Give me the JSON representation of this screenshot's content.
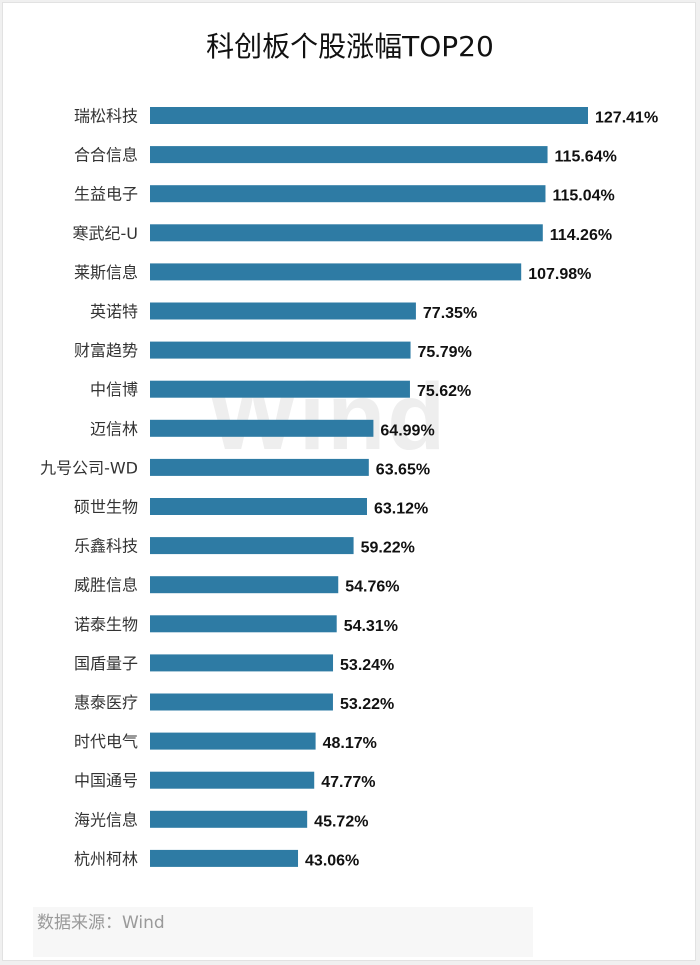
{
  "chart_data": {
    "type": "bar",
    "orientation": "horizontal",
    "title": "科创板个股涨幅TOP20",
    "categories": [
      "瑞松科技",
      "合合信息",
      "生益电子",
      "寒武纪-U",
      "莱斯信息",
      "英诺特",
      "财富趋势",
      "中信博",
      "迈信林",
      "九号公司-WD",
      "硕世生物",
      "乐鑫科技",
      "威胜信息",
      "诺泰生物",
      "国盾量子",
      "惠泰医疗",
      "时代电气",
      "中国通号",
      "海光信息",
      "杭州柯林"
    ],
    "values": [
      127.41,
      115.64,
      115.04,
      114.26,
      107.98,
      77.35,
      75.79,
      75.62,
      64.99,
      63.65,
      63.12,
      59.22,
      54.76,
      54.31,
      53.24,
      53.22,
      48.17,
      47.77,
      45.72,
      43.06
    ],
    "value_labels": [
      "127.41%",
      "115.64%",
      "115.04%",
      "114.26%",
      "107.98%",
      "77.35%",
      "75.79%",
      "75.62%",
      "64.99%",
      "63.65%",
      "63.12%",
      "59.22%",
      "54.76%",
      "54.31%",
      "53.24%",
      "53.22%",
      "48.17%",
      "47.77%",
      "45.72%",
      "43.06%"
    ],
    "bar_color": "#2e7ba4",
    "xlim": [
      0,
      127.41
    ],
    "grid": false,
    "legend": "none"
  },
  "source": "数据来源：Wind",
  "watermark": "Wind"
}
